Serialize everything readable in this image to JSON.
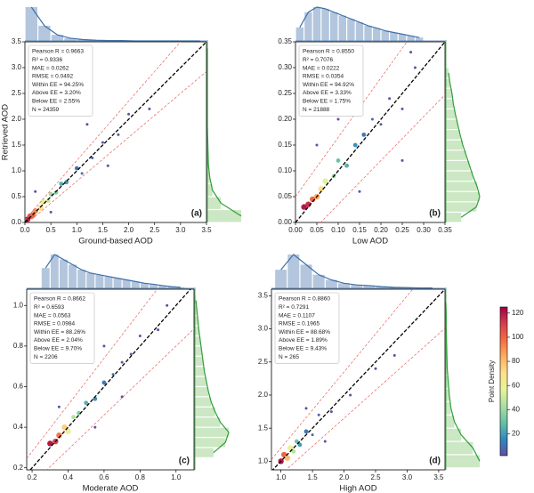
{
  "chart_data": [
    {
      "type": "scatter",
      "xlabel": "Ground-based AOD",
      "ylabel": "Retrieved AOD",
      "panel_label": "(a)",
      "annotations": [
        "Pearson R = 0.9663",
        "R² = 0.9336",
        "MAE = 0.0262",
        "RMSE = 0.0492",
        "Within EE = 94.25%",
        "Above EE = 3.20%",
        "Below EE = 2.55%",
        "N = 24359"
      ],
      "xlim": [
        0,
        3.5
      ],
      "ylim": [
        0,
        3.5
      ],
      "xticks": [
        {
          "value": 0,
          "label": "0.0"
        },
        0.5,
        {
          "value": 1,
          "label": "1.0"
        },
        1.5,
        {
          "value": 2,
          "label": "2.0"
        },
        2.5,
        {
          "value": 3,
          "label": "3.0"
        },
        3.5
      ],
      "yticks": [
        {
          "value": 0,
          "label": "0.0"
        },
        0.5,
        {
          "value": 1,
          "label": "1.0"
        },
        1.5,
        {
          "value": 2,
          "label": "2.0"
        },
        2.5,
        {
          "value": 3,
          "label": "3.0"
        },
        3.5
      ],
      "reference_lines": [
        {
          "slope": 1,
          "intercept": 0,
          "color": "#000000"
        },
        {
          "slope": 1.15,
          "intercept": 0.05,
          "color": "#e8625a"
        },
        {
          "slope": 0.85,
          "intercept": -0.05,
          "color": "#e8625a"
        }
      ],
      "x": [
        0.05,
        0.1,
        0.15,
        0.2,
        0.3,
        0.35,
        0.45,
        0.5,
        0.6,
        0.7,
        0.8,
        1.0,
        1.1,
        1.3,
        1.5,
        1.8,
        2.0,
        2.4,
        0.2,
        0.5,
        1.6,
        1.2
      ],
      "y": [
        0.06,
        0.12,
        0.14,
        0.22,
        0.28,
        0.4,
        0.42,
        0.55,
        0.58,
        0.75,
        0.78,
        1.05,
        0.95,
        1.25,
        1.55,
        1.7,
        2.1,
        2.2,
        0.6,
        0.2,
        1.1,
        1.9
      ],
      "density": [
        120,
        110,
        100,
        90,
        70,
        60,
        50,
        40,
        35,
        25,
        20,
        12,
        10,
        6,
        4,
        3,
        2,
        2,
        3,
        3,
        2,
        2
      ],
      "top_hist": {
        "bins": [
          0,
          0.25,
          0.5,
          0.75,
          1,
          1.25,
          1.5,
          1.75,
          2,
          2.25,
          2.5,
          2.75,
          3,
          3.25,
          3.5
        ],
        "counts": [
          100,
          45,
          18,
          8,
          4,
          2,
          1,
          1,
          0,
          0,
          0,
          0,
          0,
          0
        ]
      },
      "right_hist": {
        "bins": [
          0,
          0.25,
          0.5,
          0.75,
          1,
          1.25,
          1.5,
          1.75,
          2,
          2.25,
          2.5,
          2.75,
          3,
          3.25,
          3.5
        ],
        "counts": [
          100,
          40,
          15,
          7,
          3,
          2,
          1,
          0,
          0,
          0,
          0,
          0,
          0,
          0
        ]
      }
    },
    {
      "type": "scatter",
      "xlabel": "Low AOD",
      "panel_label": "(b)",
      "annotations": [
        "Pearson R = 0.8550",
        "R² = 0.7076",
        "MAE = 0.0222",
        "RMSE = 0.0354",
        "Within EE = 94.92%",
        "Above EE = 3.33%",
        "Below EE = 1.75%",
        "N = 21888"
      ],
      "xlim": [
        0,
        0.35
      ],
      "ylim": [
        0,
        0.35
      ],
      "xticks": [
        {
          "value": 0,
          "label": "0.00"
        },
        0.05,
        {
          "value": 0.1,
          "label": "0.10"
        },
        0.15,
        {
          "value": 0.2,
          "label": "0.20"
        },
        0.25,
        {
          "value": 0.3,
          "label": "0.30"
        },
        0.35
      ],
      "yticks": [
        {
          "value": 0,
          "label": "0.00"
        },
        0.05,
        {
          "value": 0.1,
          "label": "0.10"
        },
        0.15,
        {
          "value": 0.2,
          "label": "0.20"
        },
        0.25,
        {
          "value": 0.3,
          "label": "0.30"
        },
        0.35
      ],
      "reference_lines": [
        {
          "slope": 1,
          "intercept": 0,
          "color": "#000000"
        },
        {
          "slope": 1.15,
          "intercept": 0.05,
          "color": "#e8625a"
        },
        {
          "slope": 0.85,
          "intercept": -0.05,
          "color": "#e8625a"
        }
      ],
      "x": [
        0.02,
        0.03,
        0.04,
        0.05,
        0.06,
        0.07,
        0.09,
        0.1,
        0.12,
        0.14,
        0.16,
        0.18,
        0.2,
        0.22,
        0.25,
        0.28,
        0.05,
        0.1,
        0.15,
        0.25,
        0.03,
        0.27
      ],
      "y": [
        0.03,
        0.035,
        0.045,
        0.05,
        0.065,
        0.08,
        0.09,
        0.12,
        0.11,
        0.15,
        0.17,
        0.2,
        0.19,
        0.24,
        0.22,
        0.3,
        0.15,
        0.2,
        0.06,
        0.12,
        0.25,
        0.33
      ],
      "density": [
        120,
        115,
        100,
        85,
        70,
        55,
        40,
        30,
        25,
        18,
        12,
        8,
        6,
        4,
        3,
        2,
        3,
        3,
        3,
        2,
        2,
        2
      ],
      "top_hist": {
        "bins": [
          0,
          0.02,
          0.04,
          0.06,
          0.08,
          0.1,
          0.12,
          0.14,
          0.16,
          0.18,
          0.2,
          0.22,
          0.24,
          0.26,
          0.28,
          0.3
        ],
        "counts": [
          40,
          85,
          100,
          95,
          85,
          75,
          65,
          55,
          45,
          38,
          30,
          25,
          20,
          15,
          10
        ]
      },
      "right_hist": {
        "bins": [
          0,
          0.02,
          0.04,
          0.06,
          0.08,
          0.1,
          0.12,
          0.14,
          0.16,
          0.18,
          0.2,
          0.22,
          0.24,
          0.26,
          0.28,
          0.3
        ],
        "counts": [
          45,
          90,
          100,
          92,
          80,
          70,
          60,
          50,
          42,
          35,
          28,
          22,
          18,
          12,
          8
        ]
      }
    },
    {
      "type": "scatter",
      "xlabel": "Moderate AOD",
      "panel_label": "(c)",
      "annotations": [
        "Pearson R = 0.8662",
        "R² = 0.6593",
        "MAE = 0.0563",
        "RMSE = 0.0984",
        "Within EE = 88.26%",
        "Above EE = 2.04%",
        "Below EE = 9.70%",
        "N = 2206"
      ],
      "xlim": [
        0.17,
        1.1
      ],
      "ylim": [
        0.19,
        1.08
      ],
      "xticks": [
        0.2,
        0.4,
        0.6,
        0.8,
        {
          "value": 1,
          "label": "1.0"
        }
      ],
      "yticks": [
        0.2,
        0.4,
        0.6,
        0.8,
        {
          "value": 1,
          "label": "1.0"
        }
      ],
      "reference_lines": [
        {
          "slope": 1,
          "intercept": 0,
          "color": "#000000"
        },
        {
          "slope": 1.15,
          "intercept": 0.05,
          "color": "#e8625a"
        },
        {
          "slope": 0.85,
          "intercept": -0.05,
          "color": "#e8625a"
        }
      ],
      "x": [
        0.3,
        0.33,
        0.35,
        0.38,
        0.4,
        0.43,
        0.46,
        0.5,
        0.55,
        0.6,
        0.65,
        0.7,
        0.75,
        0.8,
        0.9,
        0.95,
        0.35,
        0.55,
        0.7,
        0.6
      ],
      "y": [
        0.32,
        0.33,
        0.36,
        0.4,
        0.38,
        0.45,
        0.47,
        0.52,
        0.54,
        0.62,
        0.66,
        0.72,
        0.76,
        0.85,
        0.88,
        1.0,
        0.5,
        0.4,
        0.55,
        0.8
      ],
      "density": [
        120,
        110,
        95,
        75,
        60,
        45,
        35,
        25,
        18,
        12,
        9,
        6,
        4,
        3,
        2,
        2,
        3,
        3,
        2,
        2
      ],
      "top_hist": {
        "bins": [
          0.25,
          0.3,
          0.35,
          0.4,
          0.45,
          0.5,
          0.55,
          0.6,
          0.65,
          0.7,
          0.75,
          0.8,
          0.85,
          0.9,
          0.95,
          1.0,
          1.05
        ],
        "counts": [
          60,
          100,
          85,
          70,
          55,
          45,
          40,
          35,
          30,
          25,
          20,
          15,
          12,
          8,
          5,
          3
        ]
      },
      "right_hist": {
        "bins": [
          0.25,
          0.3,
          0.35,
          0.4,
          0.45,
          0.5,
          0.55,
          0.6,
          0.65,
          0.7,
          0.75,
          0.8,
          0.85,
          0.9,
          0.95,
          1.0,
          1.05
        ],
        "counts": [
          55,
          90,
          100,
          75,
          60,
          48,
          40,
          34,
          28,
          24,
          20,
          16,
          12,
          9,
          6,
          3
        ]
      }
    },
    {
      "type": "scatter",
      "xlabel": "High AOD",
      "panel_label": "(d)",
      "annotations": [
        "Pearson R = 0.8860",
        "R² = 0.7291",
        "MAE = 0.1107",
        "RMSE = 0.1965",
        "Within EE = 88.68%",
        "Above EE = 1.89%",
        "Below EE = 9.43%",
        "N = 265"
      ],
      "xlim": [
        0.85,
        3.6
      ],
      "ylim": [
        0.87,
        3.6
      ],
      "xticks": [
        {
          "value": 1,
          "label": "1.0"
        },
        1.5,
        {
          "value": 2,
          "label": "2.0"
        },
        2.5,
        {
          "value": 3,
          "label": "3.0"
        },
        3.5
      ],
      "yticks": [
        {
          "value": 1,
          "label": "1.0"
        },
        1.5,
        {
          "value": 2,
          "label": "2.0"
        },
        2.5,
        {
          "value": 3,
          "label": "3.0"
        },
        3.5
      ],
      "reference_lines": [
        {
          "slope": 1,
          "intercept": 0,
          "color": "#000000"
        },
        {
          "slope": 1.15,
          "intercept": 0.05,
          "color": "#e8625a"
        },
        {
          "slope": 0.85,
          "intercept": -0.05,
          "color": "#e8625a"
        }
      ],
      "x": [
        1.0,
        1.05,
        1.1,
        1.15,
        1.2,
        1.25,
        1.3,
        1.4,
        1.5,
        1.6,
        1.8,
        2.1,
        2.5,
        1.4,
        1.7,
        2.8
      ],
      "y": [
        1.0,
        1.1,
        1.05,
        1.2,
        1.15,
        1.3,
        1.25,
        1.45,
        1.4,
        1.7,
        1.75,
        2.0,
        2.4,
        1.8,
        1.3,
        2.6
      ],
      "density": [
        120,
        100,
        80,
        60,
        45,
        30,
        20,
        12,
        8,
        5,
        3,
        2,
        2,
        2,
        2,
        2
      ],
      "top_hist": {
        "bins": [
          0.9,
          1.1,
          1.3,
          1.5,
          1.7,
          1.9,
          2.1,
          2.3,
          2.5,
          2.7,
          2.9,
          3.1,
          3.3,
          3.5
        ],
        "counts": [
          55,
          100,
          70,
          40,
          25,
          15,
          10,
          8,
          5,
          3,
          2,
          1,
          1
        ]
      },
      "right_hist": {
        "bins": [
          0.9,
          1.1,
          1.3,
          1.5,
          1.7,
          1.9,
          2.1,
          2.3,
          2.5,
          2.7,
          2.9,
          3.1,
          3.3,
          3.5
        ],
        "counts": [
          100,
          80,
          45,
          25,
          15,
          10,
          7,
          4,
          3,
          2,
          1,
          1,
          0
        ]
      }
    }
  ],
  "colorbar": {
    "label": "Point Density",
    "lim": [
      2,
      125
    ],
    "ticks": [
      20,
      40,
      60,
      80,
      100,
      120
    ],
    "colors": [
      "#5e4fa2",
      "#3288bd",
      "#66c2a5",
      "#abdda4",
      "#e6f598",
      "#fee08b",
      "#fdae61",
      "#f46d43",
      "#d53e4f",
      "#9e0142"
    ]
  }
}
